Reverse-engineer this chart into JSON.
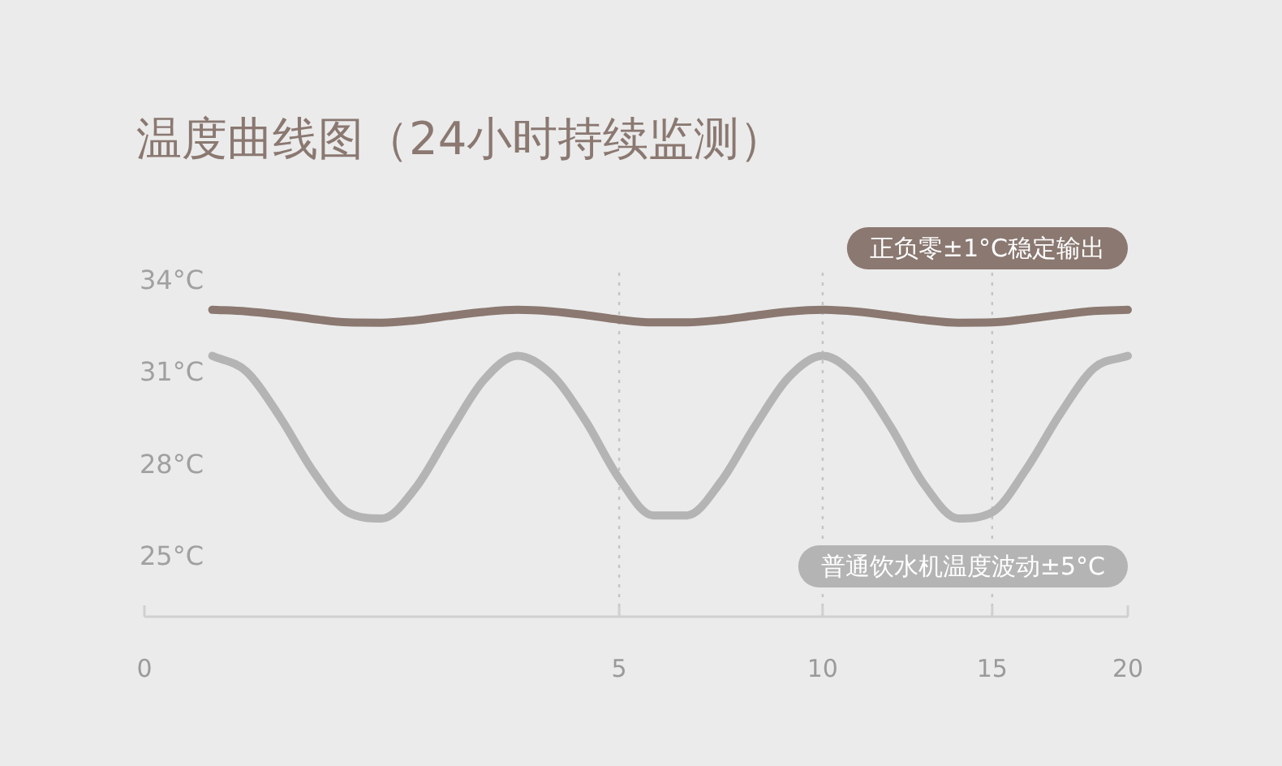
{
  "chart_data": {
    "type": "line",
    "title": "温度曲线图（24小时持续监测）",
    "categories": [
      "0",
      null,
      null,
      null,
      null,
      null,
      null,
      null,
      null,
      null,
      null,
      null,
      null,
      null,
      "5",
      null,
      null,
      null,
      null,
      null,
      "10",
      null,
      null,
      null,
      null,
      "15",
      null,
      null,
      null,
      "20"
    ],
    "ylim": [
      23,
      34.37
    ],
    "yticks": [
      {
        "value": 34,
        "label": "34°C"
      },
      {
        "value": 31,
        "label": "31°C"
      },
      {
        "value": 28,
        "label": "28°C"
      },
      {
        "value": 25,
        "label": "25°C"
      }
    ],
    "ref_lines": [
      {
        "axis": "x",
        "value": "5",
        "line_style": "dotted"
      },
      {
        "axis": "x",
        "value": "10",
        "line_style": "dotted"
      },
      {
        "axis": "x",
        "value": "15",
        "line_style": "dotted"
      }
    ],
    "grid": false,
    "legend": false,
    "marker": "none",
    "line_style": "solid",
    "series": [
      {
        "name": "正负零±1°C稳定输出",
        "color": "#8a7871",
        "values": [
          null,
          null,
          33.0,
          32.95,
          32.84,
          32.7,
          32.59,
          32.58,
          32.66,
          32.8,
          32.93,
          33.0,
          32.95,
          32.83,
          32.68,
          32.59,
          32.59,
          32.67,
          32.81,
          32.94,
          33.0,
          32.94,
          32.81,
          32.67,
          32.58,
          32.59,
          32.7,
          32.84,
          32.96,
          33.0
        ]
      },
      {
        "name": "普通饮水机温度波动±5°C",
        "color": "#b4b4b4",
        "values": [
          null,
          null,
          31.5,
          31.0,
          29.5,
          27.7,
          26.4,
          26.2,
          27.2,
          29.0,
          30.7,
          31.5,
          30.9,
          29.4,
          27.5,
          26.3,
          26.3,
          27.4,
          29.2,
          30.8,
          31.5,
          30.8,
          29.2,
          27.3,
          26.2,
          26.4,
          27.8,
          29.6,
          31.1,
          31.5
        ]
      }
    ]
  }
}
